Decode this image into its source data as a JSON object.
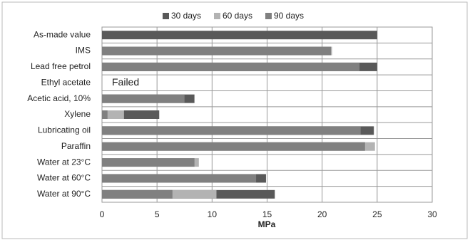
{
  "chart_data": {
    "type": "bar",
    "orientation": "horizontal",
    "overlap": true,
    "x_label": "MPa",
    "categories": [
      "As-made value",
      "IMS",
      "Lead free petrol",
      "Ethyl acetate",
      "Acetic acid, 10%",
      "Xylene",
      "Lubricating oil",
      "Paraffin",
      "Water at 23°C",
      "Water at 60°C",
      "Water at 90°C"
    ],
    "series": [
      {
        "name": "30 days",
        "color": "#595959",
        "values": [
          25,
          null,
          25,
          null,
          8.4,
          5.2,
          24.7,
          null,
          null,
          14.9,
          15.7
        ]
      },
      {
        "name": "60 days",
        "color": "#b3b3b3",
        "values": [
          null,
          20.9,
          null,
          null,
          null,
          2,
          null,
          24.8,
          8.8,
          null,
          10.4
        ]
      },
      {
        "name": "90 days",
        "color": "#808080",
        "values": [
          null,
          20.8,
          23.4,
          null,
          7.5,
          0.5,
          23.5,
          23.9,
          8.4,
          14,
          6.4
        ]
      }
    ],
    "annotations": [
      {
        "text": "Failed",
        "category": "Ethyl acetate"
      }
    ],
    "xlim": [
      0,
      30
    ],
    "xticks": [
      0,
      5,
      10,
      15,
      20,
      25,
      30
    ],
    "grid": true
  }
}
